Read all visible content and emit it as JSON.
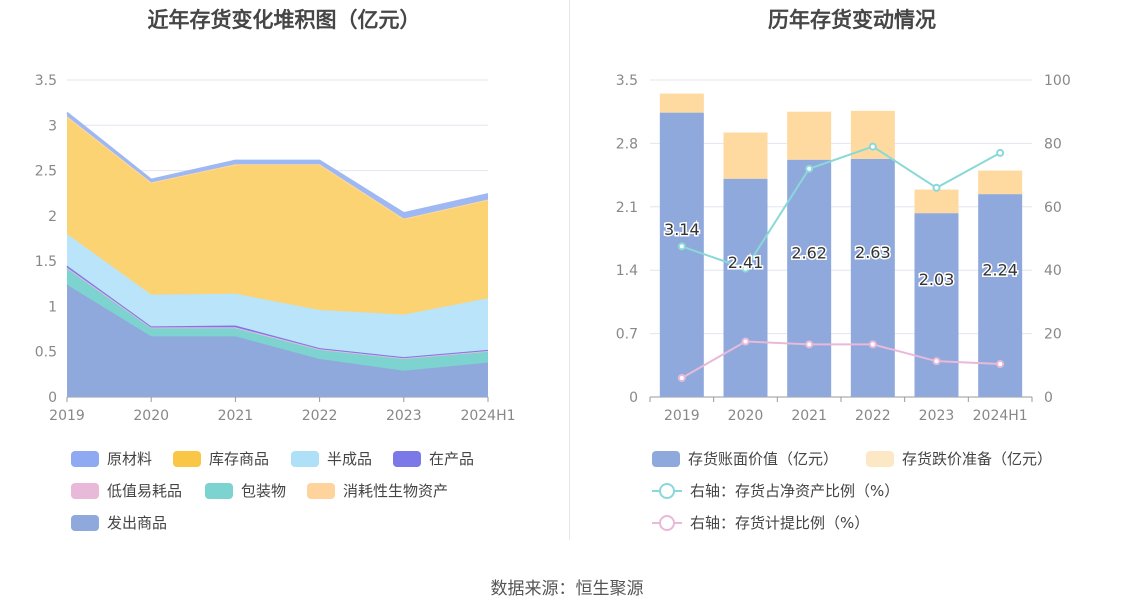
{
  "left_chart": {
    "title": "近年存货变化堆积图（亿元）",
    "chart_data": {
      "type": "area",
      "stacked": true,
      "categories": [
        "2019",
        "2020",
        "2021",
        "2022",
        "2023",
        "2024H1"
      ],
      "ylim": [
        0,
        3.5
      ],
      "yticks": [
        "0",
        "0.5",
        "1",
        "1.5",
        "2",
        "2.5",
        "3",
        "3.5"
      ],
      "series": [
        {
          "name": "发出商品",
          "color": "#8fa9dc",
          "values": [
            1.24,
            0.67,
            0.67,
            0.42,
            0.29,
            0.38
          ]
        },
        {
          "name": "包装物",
          "color": "#7dd3cf",
          "values": [
            0.18,
            0.09,
            0.09,
            0.1,
            0.13,
            0.12
          ]
        },
        {
          "name": "低值易耗品",
          "color": "#e8b9d9",
          "values": [
            0.01,
            0.01,
            0.01,
            0.01,
            0.01,
            0.01
          ]
        },
        {
          "name": "在产品",
          "color": "#7b79e8",
          "values": [
            0.02,
            0.01,
            0.02,
            0.01,
            0.01,
            0.01
          ]
        },
        {
          "name": "半成品",
          "color": "#b9e4f9",
          "values": [
            0.35,
            0.35,
            0.35,
            0.42,
            0.47,
            0.57
          ]
        },
        {
          "name": "库存商品",
          "color": "#fcd373",
          "values": [
            1.3,
            1.24,
            1.43,
            1.61,
            1.06,
            1.09
          ]
        },
        {
          "name": "消耗性生物资产",
          "color": "#ffd8a0",
          "values": [
            0,
            0,
            0,
            0,
            0,
            0
          ]
        },
        {
          "name": "原材料",
          "color": "#9db8f2",
          "values": [
            0.04,
            0.03,
            0.04,
            0.04,
            0.06,
            0.06
          ]
        }
      ]
    },
    "legend": [
      {
        "name": "原材料",
        "color": "#8faaf2"
      },
      {
        "name": "库存商品",
        "color": "#f9c646"
      },
      {
        "name": "半成品",
        "color": "#aee0f8"
      },
      {
        "name": "在产品",
        "color": "#7b79e8"
      },
      {
        "name": "低值易耗品",
        "color": "#e8b9d9"
      },
      {
        "name": "包装物",
        "color": "#7dd3cf"
      },
      {
        "name": "消耗性生物资产",
        "color": "#ffd49c"
      },
      {
        "name": "发出商品",
        "color": "#8fa9dc"
      }
    ]
  },
  "right_chart": {
    "title": "历年存货变动情况",
    "chart_data": {
      "type": "bar",
      "categories": [
        "2019",
        "2020",
        "2021",
        "2022",
        "2023",
        "2024H1"
      ],
      "ylim": [
        0,
        3.5
      ],
      "yticks": [
        "0",
        "0.7",
        "1.4",
        "2.1",
        "2.8",
        "3.5"
      ],
      "y2lim": [
        0,
        100
      ],
      "y2ticks": [
        "0",
        "20",
        "40",
        "60",
        "80",
        "100"
      ],
      "series": [
        {
          "name": "存货账面价值（亿元）",
          "type": "bar",
          "color": "#8fa9dc",
          "values": [
            3.14,
            2.41,
            2.62,
            2.63,
            2.03,
            2.24
          ],
          "labels": [
            "3.14",
            "2.41",
            "2.62",
            "2.63",
            "2.03",
            "2.24"
          ]
        },
        {
          "name": "存货跌价准备（亿元）",
          "type": "bar",
          "color": "#fedaa0",
          "values": [
            0.21,
            0.51,
            0.53,
            0.53,
            0.26,
            0.26
          ]
        },
        {
          "name": "右轴：存货占净资产比例（%）",
          "type": "line",
          "axis": "right",
          "color": "#8ad8d8",
          "values": [
            47.5,
            40.5,
            72,
            79,
            66,
            77
          ]
        },
        {
          "name": "右轴：存货计提比例（%）",
          "type": "line",
          "axis": "right",
          "color": "#e8b9d9",
          "values": [
            6,
            17.5,
            16.6,
            16.6,
            11.3,
            10.4
          ]
        }
      ]
    },
    "legend": [
      {
        "name": "存货账面价值（亿元）",
        "color": "#8fa9dc",
        "kind": "box"
      },
      {
        "name": "存货跌价准备（亿元）",
        "color": "#fde8c6",
        "kind": "box"
      },
      {
        "name": "右轴：存货占净资产比例（%）",
        "color": "#8ad8d8",
        "kind": "line"
      },
      {
        "name": "右轴：存货计提比例（%）",
        "color": "#e8b9d9",
        "kind": "line"
      }
    ]
  },
  "footer": {
    "source": "数据来源：恒生聚源"
  }
}
